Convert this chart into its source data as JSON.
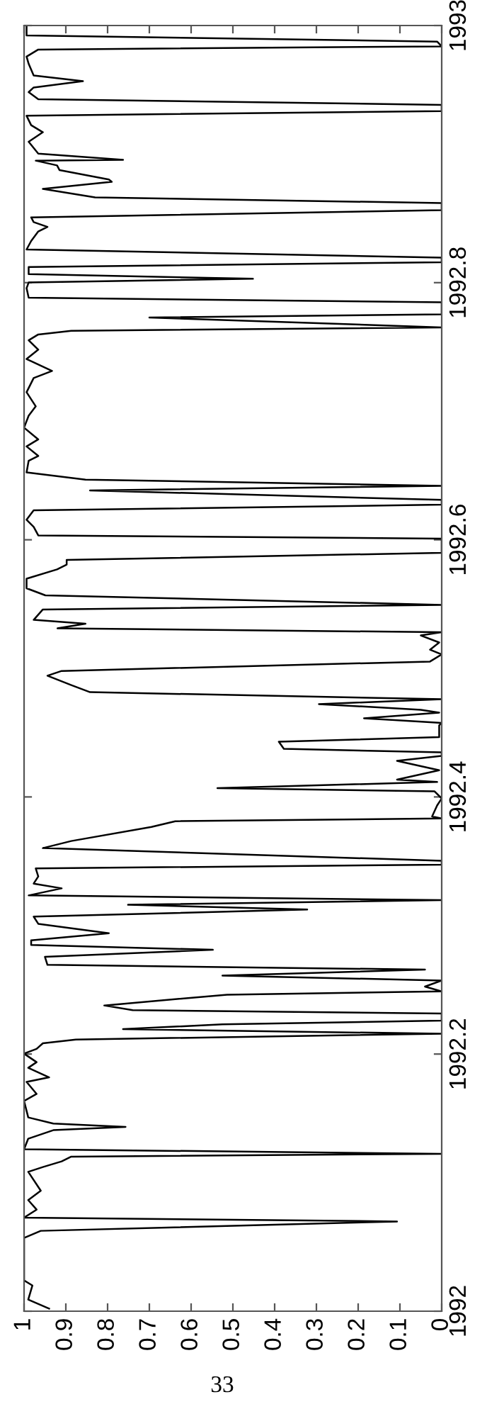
{
  "chart_data": {
    "type": "line",
    "values": [
      1992.002,
      1992.009,
      1992.02,
      1992.024,
      1992.057,
      1992.0625,
      1992.0698,
      1992.0728,
      1992.079,
      1992.0864,
      1992.0937,
      1992.1084,
      1992.1121,
      1992.1165,
      1992.1202,
      1992.1224,
      1992.126,
      1992.1342,
      1992.1408,
      1992.1433,
      1992.1459,
      1992.1507,
      1992.1635,
      1992.169,
      1992.1783,
      1992.1819,
      1992.1893,
      1992.1937,
      1992.2003,
      1992.204,
      1992.2084,
      1992.2113,
      1992.2158,
      1992.2194,
      1992.2231,
      1992.226,
      1992.2315,
      1992.2341,
      1992.2378,
      1992.2462,
      1992.2488,
      1992.2525,
      1992.2572,
      1992.261,
      1992.2657,
      1992.2694,
      1992.2756,
      1992.2811,
      1992.2848,
      1992.2885,
      1992.294,
      1992.3013,
      1992.3069,
      1992.3124,
      1992.3161,
      1992.3197,
      1992.3234,
      1992.3289,
      1992.3326,
      1992.3381,
      1992.3444,
      1992.3473,
      1992.3503,
      1992.3602,
      1992.3657,
      1992.3767,
      1992.3811,
      1992.3833,
      1992.3848,
      1992.3933,
      1992.3988,
      1992.4043,
      1992.4068,
      1992.4116,
      1992.4135,
      1992.4208,
      1992.4281,
      1992.4319,
      1992.4347,
      1992.4374,
      1992.4429,
      1992.4465,
      1992.4557,
      1992.4576,
      1992.4612,
      1992.4656,
      1992.4678,
      1992.4722,
      1992.476,
      1992.4815,
      1992.487,
      1992.4943,
      1992.498,
      1992.5053,
      1992.5108,
      1992.5145,
      1992.5201,
      1992.5256,
      1992.5281,
      1992.5311,
      1992.5347,
      1992.5377,
      1992.5458,
      1992.5494,
      1992.5568,
      1992.5623,
      1992.5697,
      1992.577,
      1992.5807,
      1992.5843,
      1992.5899,
      1992.6009,
      1992.6034,
      1992.61,
      1992.6156,
      1992.6229,
      1992.6273,
      1992.631,
      1992.6384,
      1992.642,
      1992.6468,
      1992.6524,
      1992.6615,
      1992.6652,
      1992.6726,
      1992.6781,
      1992.6872,
      1992.6965,
      1992.7038,
      1992.7148,
      1992.7258,
      1992.7313,
      1992.7406,
      1992.7479,
      1992.7552,
      1992.7597,
      1992.7626,
      1992.7652,
      1992.7729,
      1992.7754,
      1992.7847,
      1992.7883,
      1992.7957,
      1992.8001,
      1992.803,
      1992.8067,
      1992.8122,
      1992.8159,
      1992.8195,
      1992.8258,
      1992.8324,
      1992.8398,
      1992.8434,
      1992.8471,
      1992.8508,
      1992.8564,
      1992.8619,
      1992.8663,
      1992.8729,
      1992.8784,
      1992.8802,
      1992.8875,
      1992.8912,
      1992.8949,
      1992.8956,
      1992.9004,
      1992.9096,
      1992.917,
      1992.9225,
      1992.9298,
      1992.9335,
      1992.9383,
      1992.9427,
      1992.9482,
      1992.9518,
      1992.9567,
      1992.9611,
      1992.9702,
      1992.9758,
      1992.9813,
      1992.9838,
      1992.9875,
      1992.9923,
      1992.999
    ],
    "x": [
      0.94,
      0.99,
      0.98,
      1,
      1,
      0.96,
      0.107,
      1,
      0.97,
      0.99,
      0.96,
      0.99,
      0.955,
      0.91,
      0.887,
      0,
      1,
      0.99,
      0.93,
      0.757,
      0.93,
      0.99,
      1,
      0.97,
      0.994,
      0.94,
      0.99,
      0.97,
      1,
      0.97,
      0.955,
      0.876,
      0,
      0.763,
      0.525,
      0,
      0,
      0.74,
      0.808,
      0.514,
      0,
      0.04,
      0,
      0.525,
      0.04,
      0.944,
      0.95,
      0.548,
      0.983,
      0.983,
      0.797,
      0.966,
      0.977,
      0.322,
      0.751,
      0,
      0.989,
      0.91,
      0.977,
      0.966,
      0.972,
      0,
      0,
      0.955,
      0.887,
      0.695,
      0.638,
      0,
      0.023,
      0.011,
      0,
      0.017,
      0.537,
      0.011,
      0.107,
      0.006,
      0.107,
      0,
      0,
      0.378,
      0.39,
      0.006,
      0.006,
      0,
      0.186,
      0.006,
      0.05,
      0.294,
      0,
      0.842,
      0.887,
      0.944,
      0.91,
      0.028,
      0,
      0.028,
      0.006,
      0.05,
      0,
      0.92,
      0.853,
      0.977,
      0.955,
      0,
      0.949,
      0.994,
      0.994,
      0.921,
      0.898,
      0.898,
      0,
      0,
      0.966,
      0.977,
      0.994,
      0.977,
      0,
      0,
      0.842,
      0,
      0.853,
      0.994,
      0.989,
      0.966,
      0.994,
      0.966,
      1,
      0.989,
      0.972,
      0.994,
      0.977,
      0.933,
      0.994,
      0.966,
      0.989,
      0.966,
      0.887,
      0,
      0.7,
      0,
      0,
      0.989,
      0.994,
      0.989,
      0.452,
      0.989,
      0.989,
      0,
      0,
      0.994,
      0.983,
      0.966,
      0.944,
      0.977,
      0.983,
      0,
      0,
      0.83,
      0.955,
      0.79,
      0.797,
      0.915,
      0.921,
      0.972,
      0.763,
      0.966,
      0.989,
      0.955,
      0.983,
      0.994,
      0,
      0,
      0.966,
      0.989,
      0.977,
      0.859,
      0.977,
      0.989,
      0.994,
      0.966,
      0,
      0.011,
      0.994,
      0.994
    ],
    "color": "#000000",
    "ylim": [
      1992,
      1993
    ],
    "yticks": [
      1992,
      1992.2,
      1992.4,
      1992.6,
      1992.8,
      1993
    ],
    "xlim": [
      1,
      0
    ],
    "xticks": [
      1,
      0.9,
      0.8,
      0.7,
      0.6,
      0.5,
      0.4,
      0.3,
      0.2,
      0.1,
      0
    ],
    "grid": false,
    "annotations": [
      "33"
    ]
  }
}
